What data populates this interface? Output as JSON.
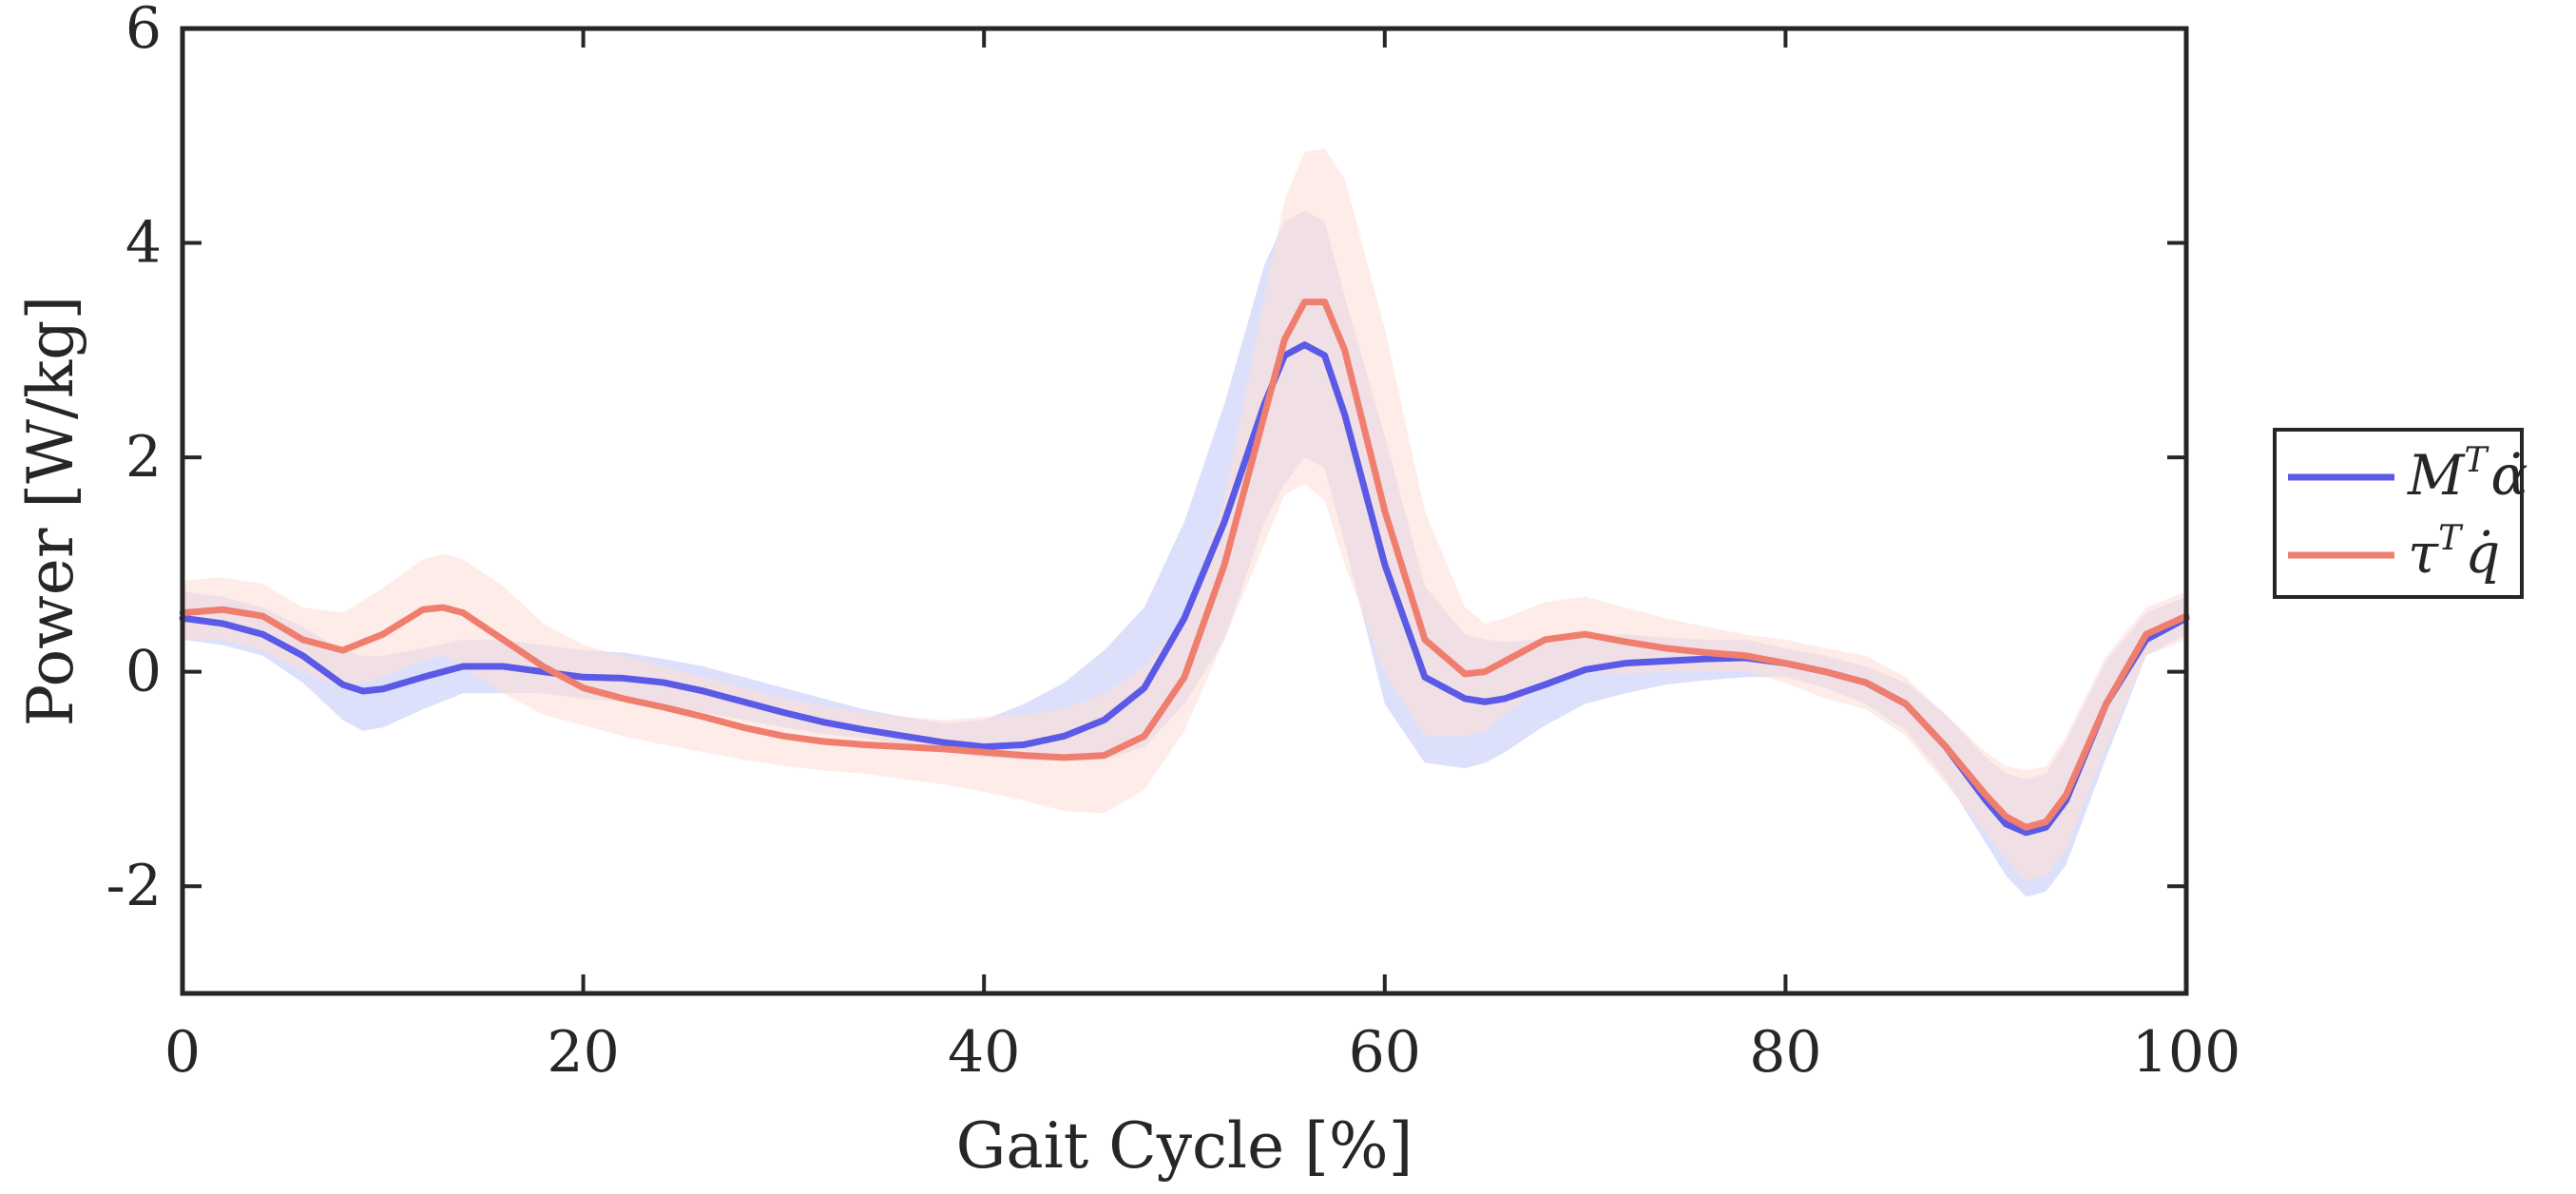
{
  "chart_data": {
    "type": "line",
    "title": "",
    "xlabel": "Gait Cycle [%]",
    "ylabel": "Power [W/kg]",
    "xlim": [
      0,
      100
    ],
    "ylim": [
      -3,
      6
    ],
    "xticks": [
      0,
      20,
      40,
      60,
      80,
      100
    ],
    "yticks": [
      -2,
      0,
      2,
      4,
      6
    ],
    "grid": false,
    "legend_position": "outside-right",
    "series": [
      {
        "key": "m",
        "legend_base": "M",
        "legend_sup": "T",
        "legend_tail": "α̇",
        "color": "#5a5ae6",
        "band_color": "#c6ccf7",
        "x": [
          0,
          2,
          4,
          6,
          8,
          9,
          10,
          12,
          14,
          16,
          18,
          20,
          22,
          24,
          26,
          28,
          30,
          32,
          34,
          36,
          38,
          40,
          42,
          44,
          46,
          48,
          50,
          52,
          54,
          55,
          56,
          57,
          58,
          60,
          62,
          64,
          65,
          66,
          68,
          70,
          72,
          74,
          76,
          78,
          80,
          82,
          84,
          86,
          88,
          90,
          91,
          92,
          93,
          94,
          96,
          98,
          100
        ],
        "y": [
          0.5,
          0.45,
          0.35,
          0.15,
          -0.12,
          -0.18,
          -0.16,
          -0.05,
          0.05,
          0.05,
          0.0,
          -0.05,
          -0.06,
          -0.1,
          -0.18,
          -0.28,
          -0.38,
          -0.47,
          -0.54,
          -0.6,
          -0.66,
          -0.7,
          -0.68,
          -0.6,
          -0.45,
          -0.15,
          0.5,
          1.4,
          2.5,
          2.95,
          3.05,
          2.95,
          2.4,
          1.0,
          -0.05,
          -0.25,
          -0.28,
          -0.25,
          -0.12,
          0.02,
          0.08,
          0.1,
          0.12,
          0.13,
          0.08,
          0.0,
          -0.1,
          -0.3,
          -0.7,
          -1.2,
          -1.42,
          -1.5,
          -1.45,
          -1.2,
          -0.3,
          0.3,
          0.5
        ],
        "lower": [
          0.3,
          0.25,
          0.15,
          -0.1,
          -0.45,
          -0.55,
          -0.52,
          -0.35,
          -0.2,
          -0.2,
          -0.2,
          -0.25,
          -0.28,
          -0.32,
          -0.38,
          -0.45,
          -0.52,
          -0.58,
          -0.62,
          -0.68,
          -0.74,
          -0.8,
          -0.82,
          -0.82,
          -0.82,
          -0.7,
          -0.3,
          0.3,
          1.4,
          1.75,
          2.0,
          1.9,
          1.2,
          -0.3,
          -0.85,
          -0.9,
          -0.85,
          -0.75,
          -0.5,
          -0.3,
          -0.2,
          -0.12,
          -0.08,
          -0.05,
          -0.05,
          -0.15,
          -0.3,
          -0.55,
          -1.0,
          -1.6,
          -1.9,
          -2.1,
          -2.05,
          -1.8,
          -0.8,
          0.15,
          0.35
        ],
        "upper": [
          0.75,
          0.7,
          0.6,
          0.42,
          0.2,
          0.15,
          0.15,
          0.22,
          0.3,
          0.3,
          0.25,
          0.2,
          0.18,
          0.12,
          0.05,
          -0.05,
          -0.15,
          -0.25,
          -0.35,
          -0.42,
          -0.48,
          -0.45,
          -0.3,
          -0.1,
          0.2,
          0.6,
          1.4,
          2.5,
          3.8,
          4.2,
          4.3,
          4.2,
          3.5,
          2.2,
          0.8,
          0.35,
          0.3,
          0.28,
          0.3,
          0.35,
          0.35,
          0.32,
          0.3,
          0.3,
          0.22,
          0.15,
          0.05,
          -0.1,
          -0.4,
          -0.8,
          -0.95,
          -1.0,
          -0.95,
          -0.65,
          0.1,
          0.55,
          0.7
        ]
      },
      {
        "key": "tau",
        "legend_base": "τ",
        "legend_sup": "T",
        "legend_tail": "q̇",
        "color": "#f07e6e",
        "band_color": "#fde0d8",
        "x": [
          0,
          2,
          4,
          6,
          8,
          10,
          12,
          13,
          14,
          16,
          18,
          20,
          22,
          24,
          26,
          28,
          30,
          32,
          34,
          36,
          38,
          40,
          42,
          44,
          46,
          48,
          50,
          52,
          54,
          55,
          56,
          57,
          58,
          60,
          62,
          64,
          65,
          66,
          68,
          70,
          72,
          74,
          76,
          78,
          80,
          82,
          84,
          86,
          88,
          90,
          91,
          92,
          93,
          94,
          96,
          98,
          100
        ],
        "y": [
          0.55,
          0.58,
          0.52,
          0.3,
          0.2,
          0.35,
          0.58,
          0.6,
          0.55,
          0.3,
          0.05,
          -0.15,
          -0.25,
          -0.33,
          -0.42,
          -0.52,
          -0.6,
          -0.65,
          -0.68,
          -0.7,
          -0.72,
          -0.75,
          -0.78,
          -0.8,
          -0.78,
          -0.6,
          -0.05,
          1.0,
          2.4,
          3.1,
          3.45,
          3.45,
          3.0,
          1.5,
          0.3,
          -0.02,
          0.0,
          0.1,
          0.3,
          0.35,
          0.28,
          0.22,
          0.18,
          0.15,
          0.08,
          0.0,
          -0.1,
          -0.3,
          -0.7,
          -1.15,
          -1.35,
          -1.45,
          -1.4,
          -1.15,
          -0.3,
          0.35,
          0.52
        ],
        "lower": [
          0.3,
          0.3,
          0.2,
          0.0,
          -0.15,
          -0.05,
          0.1,
          0.15,
          0.05,
          -0.2,
          -0.4,
          -0.5,
          -0.6,
          -0.68,
          -0.75,
          -0.82,
          -0.88,
          -0.92,
          -0.95,
          -1.0,
          -1.05,
          -1.12,
          -1.2,
          -1.3,
          -1.32,
          -1.1,
          -0.55,
          0.3,
          1.2,
          1.65,
          1.75,
          1.6,
          1.0,
          0.0,
          -0.6,
          -0.6,
          -0.55,
          -0.4,
          -0.1,
          0.0,
          -0.02,
          0.0,
          0.0,
          0.0,
          -0.1,
          -0.25,
          -0.35,
          -0.6,
          -1.05,
          -1.5,
          -1.75,
          -1.95,
          -1.9,
          -1.65,
          -0.7,
          0.15,
          0.3
        ],
        "upper": [
          0.85,
          0.88,
          0.82,
          0.6,
          0.55,
          0.78,
          1.05,
          1.1,
          1.05,
          0.8,
          0.45,
          0.25,
          0.15,
          0.05,
          -0.05,
          -0.15,
          -0.25,
          -0.32,
          -0.38,
          -0.42,
          -0.45,
          -0.42,
          -0.4,
          -0.35,
          -0.2,
          0.05,
          0.5,
          1.6,
          3.5,
          4.4,
          4.85,
          4.88,
          4.6,
          3.2,
          1.5,
          0.6,
          0.45,
          0.5,
          0.65,
          0.7,
          0.6,
          0.5,
          0.42,
          0.35,
          0.3,
          0.22,
          0.15,
          -0.05,
          -0.4,
          -0.75,
          -0.88,
          -0.92,
          -0.88,
          -0.6,
          0.15,
          0.6,
          0.75
        ]
      }
    ]
  }
}
